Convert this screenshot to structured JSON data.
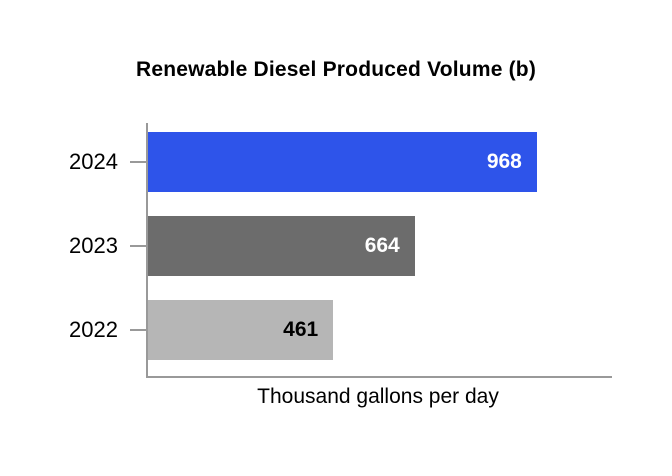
{
  "chart_data": {
    "type": "bar",
    "orientation": "horizontal",
    "title": "Renewable Diesel Produced Volume (b)",
    "xlabel": "Thousand gallons per day",
    "categories": [
      "2024",
      "2023",
      "2022"
    ],
    "values": [
      968,
      664,
      461
    ],
    "bar_colors": [
      "#2e54ea",
      "#6c6c6c",
      "#b6b6b6"
    ],
    "value_label_colors": [
      "#ffffff",
      "#ffffff",
      "#000000"
    ],
    "xlim": [
      0,
      1155
    ],
    "axis_color": "#999999",
    "grid": false,
    "legend": false
  }
}
